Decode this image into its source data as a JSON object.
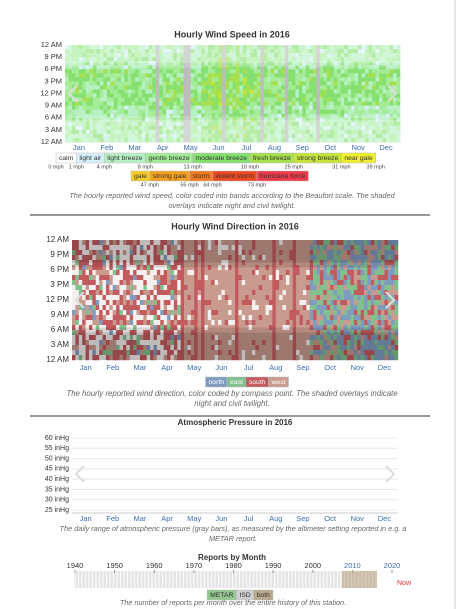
{
  "chart_data": [
    {
      "type": "heatmap",
      "title": "Hourly Wind Speed in 2016",
      "categories": [
        "Jan",
        "Feb",
        "Mar",
        "Apr",
        "May",
        "Jun",
        "Jul",
        "Aug",
        "Sep",
        "Oct",
        "Nov",
        "Dec"
      ],
      "y_categories": [
        "12 AM",
        "9 PM",
        "6 PM",
        "3 PM",
        "12 PM",
        "9 AM",
        "6 AM",
        "3 AM",
        "12 AM"
      ],
      "legend": [
        {
          "name": "calm",
          "color": "#ffffff"
        },
        {
          "name": "light air",
          "color": "#d6f1fb"
        },
        {
          "name": "light breeze",
          "color": "#b7f0c4"
        },
        {
          "name": "gentle breeze",
          "color": "#a4ec98"
        },
        {
          "name": "moderate breeze",
          "color": "#86e06f"
        },
        {
          "name": "fresh breeze",
          "color": "#a7df4e"
        },
        {
          "name": "strong breeze",
          "color": "#c5e43c"
        },
        {
          "name": "near gale",
          "color": "#f0f030"
        },
        {
          "name": "gale",
          "color": "#f5cc2a"
        },
        {
          "name": "strong gale",
          "color": "#f4a020"
        },
        {
          "name": "storm",
          "color": "#f27a1c"
        },
        {
          "name": "violent storm",
          "color": "#ee4a22"
        },
        {
          "name": "hurricane force",
          "color": "#ee3a4a"
        }
      ],
      "thresholds": [
        {
          "value": 0,
          "label": "0 mph"
        },
        {
          "value": 1,
          "label": "1 mph"
        },
        {
          "value": 4,
          "label": "4 mph"
        },
        {
          "value": 8,
          "label": "8 mph"
        },
        {
          "value": 13,
          "label": "13 mph"
        },
        {
          "value": 19,
          "label": "19 mph"
        },
        {
          "value": 25,
          "label": "25 mph"
        },
        {
          "value": 31,
          "label": "31 mph"
        },
        {
          "value": 39,
          "label": "39 mph"
        },
        {
          "value": 47,
          "label": "47 mph"
        },
        {
          "value": 55,
          "label": "55 mph"
        },
        {
          "value": 64,
          "label": "64 mph"
        },
        {
          "value": 73,
          "label": "73 mph"
        }
      ],
      "caption": "The hourly reported wind speed, color coded into bands according to the Beaufort scale. The shaded overlays indicate night and civil twilight."
    },
    {
      "type": "heatmap",
      "title": "Hourly Wind Direction in 2016",
      "categories": [
        "Jan",
        "Feb",
        "Mar",
        "Apr",
        "May",
        "Jun",
        "Jul",
        "Aug",
        "Sep",
        "Oct",
        "Nov",
        "Dec"
      ],
      "y_categories": [
        "12 AM",
        "9 PM",
        "6 PM",
        "3 PM",
        "12 PM",
        "9 AM",
        "6 AM",
        "3 AM",
        "12 AM"
      ],
      "legend": [
        {
          "name": "north",
          "color": "#7f9cc0"
        },
        {
          "name": "east",
          "color": "#82c08e"
        },
        {
          "name": "south",
          "color": "#c35a5e"
        },
        {
          "name": "west",
          "color": "#c99a8e"
        }
      ],
      "caption": "The hourly reported wind direction, color coded by compass point. The shaded overlays indicate night and civil twilight."
    },
    {
      "type": "range",
      "title": "Atmospheric Pressure in 2016",
      "categories": [
        "Jan",
        "Feb",
        "Mar",
        "Apr",
        "May",
        "Jun",
        "Jul",
        "Aug",
        "Sep",
        "Oct",
        "Nov",
        "Dec"
      ],
      "ylim": [
        25,
        60
      ],
      "yticks": [
        {
          "value": 60,
          "label": "60 inHg"
        },
        {
          "value": 55,
          "label": "55 inHg"
        },
        {
          "value": 50,
          "label": "50 inHg"
        },
        {
          "value": 45,
          "label": "45 inHg"
        },
        {
          "value": 40,
          "label": "40 inHg"
        },
        {
          "value": 35,
          "label": "35 inHg"
        },
        {
          "value": 30,
          "label": "30 inHg"
        },
        {
          "value": 25,
          "label": "25 inHg"
        }
      ],
      "grid": true,
      "caption": "The daily range of atmospheric pressure (gray bars), as measured by the altimeter setting reported in e.g. a METAR report."
    },
    {
      "type": "timeline",
      "title": "Reports by Month",
      "xlim": [
        1940,
        2020
      ],
      "xticks": [
        1940,
        1950,
        1960,
        1970,
        1980,
        1990,
        2000,
        2010,
        2020
      ],
      "annotation": "Now",
      "legend": [
        {
          "name": "METAR",
          "color": "#93c78f"
        },
        {
          "name": "ISD",
          "color": "#cfcfcf"
        },
        {
          "name": "both",
          "color": "#bba98c"
        }
      ],
      "caption": "The number of reports per month over the entire history of this station."
    }
  ]
}
